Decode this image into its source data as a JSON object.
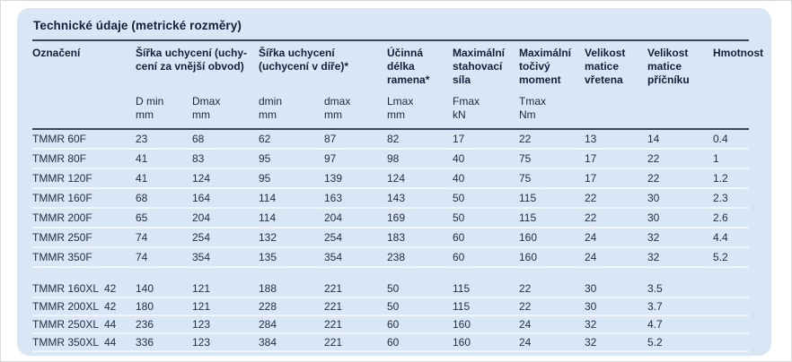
{
  "title": "Technické údaje (metrické rozměry)",
  "colors": {
    "panel_background": "#d8e6f5",
    "dark_rule": "#3a465c",
    "row_divider": "#eef5fc",
    "heading_text": "#13203c",
    "body_text": "#272f3e"
  },
  "header": {
    "designation": "Označení",
    "groups": [
      {
        "lines": [
          "Šířka uchycení (uchy-",
          "cení za vnější obvod)"
        ]
      },
      {
        "lines": [
          "Šířka uchycení",
          "(uchycení v díře)*"
        ]
      },
      {
        "lines": [
          "Účinná",
          "délka",
          "ramena*"
        ]
      },
      {
        "lines": [
          "Maximální",
          "stahovací",
          "síla"
        ]
      },
      {
        "lines": [
          "Maximální",
          "točivý",
          "moment"
        ]
      },
      {
        "lines": [
          "Velikost",
          "matice",
          "vřetena"
        ]
      },
      {
        "lines": [
          "Velikost",
          "matice",
          "příčníku"
        ]
      },
      {
        "lines": [
          "Hmotnost"
        ]
      }
    ],
    "subheaders": [
      {
        "symbol": "D min",
        "unit": "mm"
      },
      {
        "symbol": "Dmax",
        "unit": "mm"
      },
      {
        "symbol": "dmin",
        "unit": "mm"
      },
      {
        "symbol": "dmax",
        "unit": "mm"
      },
      {
        "symbol": "Lmax",
        "unit": "mm"
      },
      {
        "symbol": "Fmax",
        "unit": "kN"
      },
      {
        "symbol": "Tmax",
        "unit": "Nm"
      }
    ]
  },
  "rows": [
    {
      "name": "TMMR 60F",
      "extra": "",
      "series": "f",
      "values": [
        "23",
        "68",
        "62",
        "87",
        "82",
        "17",
        "22",
        "13",
        "14",
        "0.4"
      ]
    },
    {
      "name": "TMMR 80F",
      "extra": "",
      "series": "f",
      "values": [
        "41",
        "83",
        "95",
        "97",
        "98",
        "40",
        "75",
        "17",
        "22",
        "1"
      ]
    },
    {
      "name": "TMMR 120F",
      "extra": "",
      "series": "f",
      "values": [
        "41",
        "124",
        "95",
        "139",
        "124",
        "40",
        "75",
        "17",
        "22",
        "1.2"
      ]
    },
    {
      "name": "TMMR 160F",
      "extra": "",
      "series": "f",
      "values": [
        "68",
        "164",
        "114",
        "163",
        "143",
        "50",
        "115",
        "22",
        "30",
        "2.3"
      ]
    },
    {
      "name": "TMMR 200F",
      "extra": "",
      "series": "f",
      "values": [
        "65",
        "204",
        "114",
        "204",
        "169",
        "50",
        "115",
        "22",
        "30",
        "2.6"
      ]
    },
    {
      "name": "TMMR 250F",
      "extra": "",
      "series": "f",
      "values": [
        "74",
        "254",
        "132",
        "254",
        "183",
        "60",
        "160",
        "24",
        "32",
        "4.4"
      ]
    },
    {
      "name": "TMMR 350F",
      "extra": "",
      "series": "f",
      "values": [
        "74",
        "354",
        "135",
        "354",
        "238",
        "60",
        "160",
        "24",
        "32",
        "5.2"
      ]
    },
    {
      "name": "TMMR 160XL",
      "extra": "42",
      "series": "xl",
      "values": [
        "140",
        "121",
        "188",
        "221",
        "50",
        "115",
        "22",
        "30",
        "3.5",
        ""
      ]
    },
    {
      "name": "TMMR 200XL",
      "extra": "42",
      "series": "xl",
      "values": [
        "180",
        "121",
        "228",
        "221",
        "50",
        "115",
        "22",
        "30",
        "3.7",
        ""
      ]
    },
    {
      "name": "TMMR 250XL",
      "extra": "44",
      "series": "xl",
      "values": [
        "236",
        "123",
        "284",
        "221",
        "60",
        "160",
        "24",
        "32",
        "4.7",
        ""
      ]
    },
    {
      "name": "TMMR 350XL",
      "extra": "44",
      "series": "xl",
      "values": [
        "336",
        "123",
        "384",
        "221",
        "60",
        "160",
        "24",
        "32",
        "5.2",
        ""
      ]
    }
  ]
}
